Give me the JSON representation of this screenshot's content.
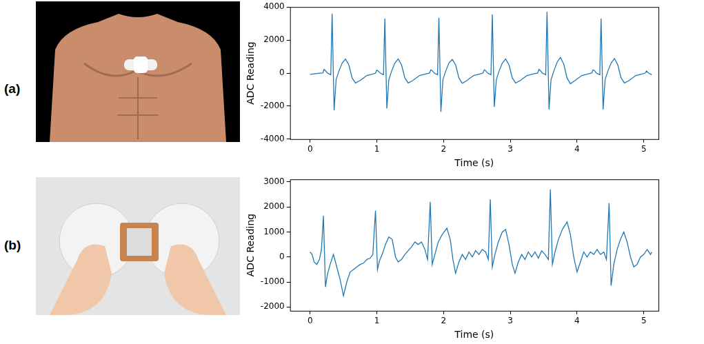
{
  "panel_labels": [
    "(a)",
    "(b)"
  ],
  "chart_data": [
    {
      "type": "line",
      "x_label": "Time (s)",
      "y_label": "ADC Reading",
      "color": "#1f77b4",
      "grid": false,
      "xlim": [
        -0.3,
        5.22
      ],
      "xticks": [
        0,
        1,
        2,
        3,
        4,
        5
      ],
      "ylim": [
        -4000,
        4000
      ],
      "yticks": [
        -4000,
        -2000,
        0,
        2000,
        4000
      ],
      "x": [
        0.0,
        0.1,
        0.19,
        0.21,
        0.23,
        0.26,
        0.31,
        0.33,
        0.36,
        0.39,
        0.43,
        0.48,
        0.53,
        0.58,
        0.63,
        0.68,
        0.75,
        0.85,
        0.95,
        0.98,
        1.0,
        1.02,
        1.05,
        1.1,
        1.12,
        1.15,
        1.18,
        1.22,
        1.27,
        1.32,
        1.37,
        1.42,
        1.47,
        1.54,
        1.64,
        1.74,
        1.79,
        1.81,
        1.83,
        1.86,
        1.91,
        1.93,
        1.96,
        1.99,
        2.03,
        2.08,
        2.13,
        2.18,
        2.23,
        2.28,
        2.35,
        2.45,
        2.55,
        2.59,
        2.61,
        2.63,
        2.66,
        2.71,
        2.73,
        2.76,
        2.79,
        2.83,
        2.88,
        2.93,
        2.98,
        3.03,
        3.08,
        3.15,
        3.25,
        3.35,
        3.41,
        3.43,
        3.45,
        3.48,
        3.53,
        3.55,
        3.58,
        3.61,
        3.65,
        3.7,
        3.75,
        3.8,
        3.85,
        3.9,
        3.97,
        4.07,
        4.17,
        4.22,
        4.24,
        4.26,
        4.29,
        4.34,
        4.36,
        4.39,
        4.42,
        4.46,
        4.51,
        4.56,
        4.61,
        4.66,
        4.71,
        4.78,
        4.88,
        4.98,
        5.02,
        5.04,
        5.07,
        5.12
      ],
      "values": [
        -80,
        -30,
        0,
        220,
        150,
        0,
        -100,
        3600,
        -2250,
        -400,
        100,
        600,
        850,
        500,
        -300,
        -600,
        -450,
        -150,
        -50,
        0,
        180,
        130,
        0,
        -100,
        3300,
        -2150,
        -400,
        100,
        600,
        850,
        500,
        -300,
        -600,
        -450,
        -150,
        -50,
        0,
        200,
        150,
        0,
        -100,
        3350,
        -2350,
        -400,
        100,
        600,
        830,
        500,
        -300,
        -620,
        -450,
        -150,
        -50,
        0,
        200,
        150,
        0,
        -100,
        3550,
        -2050,
        -400,
        100,
        600,
        850,
        500,
        -300,
        -600,
        -450,
        -150,
        -50,
        0,
        220,
        150,
        0,
        -100,
        3700,
        -2200,
        -400,
        100,
        650,
        950,
        550,
        -300,
        -650,
        -450,
        -150,
        -50,
        0,
        200,
        150,
        0,
        -100,
        3300,
        -2200,
        -400,
        100,
        600,
        880,
        500,
        -300,
        -600,
        -450,
        -150,
        -50,
        0,
        120,
        0,
        -100
      ]
    },
    {
      "type": "line",
      "x_label": "Time (s)",
      "y_label": "ADC Reading",
      "color": "#1f77b4",
      "grid": false,
      "xlim": [
        -0.3,
        5.22
      ],
      "xticks": [
        0,
        1,
        2,
        3,
        4,
        5
      ],
      "ylim": [
        -2150,
        3100
      ],
      "yticks": [
        -2000,
        -1000,
        0,
        1000,
        2000,
        3000
      ],
      "x": [
        0.0,
        0.03,
        0.06,
        0.1,
        0.14,
        0.17,
        0.2,
        0.23,
        0.26,
        0.3,
        0.35,
        0.4,
        0.45,
        0.5,
        0.55,
        0.6,
        0.65,
        0.7,
        0.75,
        0.8,
        0.85,
        0.9,
        0.94,
        0.98,
        1.01,
        1.04,
        1.08,
        1.13,
        1.18,
        1.23,
        1.28,
        1.32,
        1.37,
        1.42,
        1.47,
        1.52,
        1.57,
        1.62,
        1.67,
        1.72,
        1.76,
        1.8,
        1.83,
        1.87,
        1.92,
        1.98,
        2.05,
        2.1,
        2.14,
        2.18,
        2.23,
        2.28,
        2.33,
        2.38,
        2.43,
        2.48,
        2.53,
        2.58,
        2.63,
        2.67,
        2.7,
        2.73,
        2.77,
        2.82,
        2.88,
        2.93,
        2.98,
        3.03,
        3.07,
        3.12,
        3.17,
        3.22,
        3.27,
        3.32,
        3.37,
        3.42,
        3.47,
        3.52,
        3.57,
        3.6,
        3.63,
        3.67,
        3.72,
        3.78,
        3.85,
        3.9,
        3.95,
        4.0,
        4.05,
        4.1,
        4.15,
        4.2,
        4.25,
        4.3,
        4.35,
        4.4,
        4.44,
        4.48,
        4.51,
        4.55,
        4.6,
        4.65,
        4.7,
        4.75,
        4.8,
        4.85,
        4.9,
        4.95,
        5.0,
        5.05,
        5.1,
        5.12
      ],
      "values": [
        200,
        100,
        -200,
        -300,
        -100,
        300,
        1650,
        -1200,
        -700,
        -300,
        100,
        -400,
        -900,
        -1550,
        -1000,
        -600,
        -500,
        -400,
        -300,
        -250,
        -100,
        -50,
        100,
        1850,
        -500,
        -150,
        100,
        500,
        800,
        700,
        0,
        -200,
        -100,
        100,
        250,
        400,
        600,
        500,
        600,
        300,
        -100,
        2200,
        -300,
        100,
        600,
        900,
        1150,
        700,
        -100,
        -650,
        -200,
        100,
        -100,
        200,
        0,
        250,
        100,
        300,
        200,
        -100,
        2300,
        -400,
        100,
        600,
        1000,
        1100,
        500,
        -300,
        -650,
        -200,
        100,
        -100,
        200,
        0,
        200,
        -50,
        250,
        100,
        -100,
        2700,
        -300,
        200,
        700,
        1100,
        1400,
        900,
        0,
        -600,
        -200,
        200,
        0,
        200,
        100,
        300,
        100,
        200,
        -100,
        2150,
        -1150,
        -300,
        300,
        700,
        1000,
        600,
        0,
        -400,
        -300,
        0,
        100,
        300,
        100,
        200
      ]
    }
  ]
}
